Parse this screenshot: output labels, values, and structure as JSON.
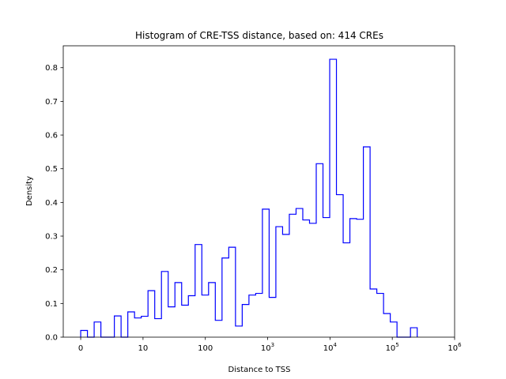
{
  "chart_data": {
    "type": "histogram",
    "title": "Histogram of CRE-TSS distance, based on: 414 CREs",
    "xlabel": "Distance to TSS",
    "ylabel": "Density",
    "xscale": "symlog",
    "linthresh": 10,
    "xlim": [
      -2.8,
      1000000
    ],
    "ylim": [
      0,
      0.865
    ],
    "grid": false,
    "histtype": "step",
    "color": "#0000ff",
    "bin_min": 0,
    "bin_max": 251000,
    "n_bins": 50,
    "density": [
      0.02,
      0,
      0.045,
      0,
      0,
      0.063,
      0,
      0.075,
      0.057,
      0.062,
      0.138,
      0.055,
      0.195,
      0.09,
      0.162,
      0.095,
      0.123,
      0.275,
      0.125,
      0.162,
      0.05,
      0.235,
      0.267,
      0.033,
      0.097,
      0.125,
      0.13,
      0.38,
      0.118,
      0.328,
      0.305,
      0.365,
      0.382,
      0.348,
      0.338,
      0.515,
      0.355,
      0.825,
      0.423,
      0.28,
      0.352,
      0.35,
      0.565,
      0.143,
      0.13,
      0.07,
      0.045,
      0,
      0,
      0.028
    ],
    "x_ticks": [
      {
        "value": 0,
        "base": "0",
        "exp": ""
      },
      {
        "value": 10,
        "base": "10",
        "exp": ""
      },
      {
        "value": 100,
        "base": "100",
        "exp": ""
      },
      {
        "value": 1000,
        "base": "10",
        "exp": "3"
      },
      {
        "value": 10000,
        "base": "10",
        "exp": "4"
      },
      {
        "value": 100000,
        "base": "10",
        "exp": "5"
      },
      {
        "value": 1000000,
        "base": "10",
        "exp": "6"
      }
    ],
    "y_ticks": [
      {
        "value": 0,
        "label": "0.0"
      },
      {
        "value": 0.1,
        "label": "0.1"
      },
      {
        "value": 0.2,
        "label": "0.2"
      },
      {
        "value": 0.3,
        "label": "0.3"
      },
      {
        "value": 0.4,
        "label": "0.4"
      },
      {
        "value": 0.5,
        "label": "0.5"
      },
      {
        "value": 0.6,
        "label": "0.6"
      },
      {
        "value": 0.7,
        "label": "0.7"
      },
      {
        "value": 0.8,
        "label": "0.8"
      }
    ]
  }
}
